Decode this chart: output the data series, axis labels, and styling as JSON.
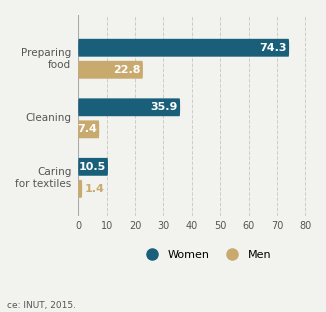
{
  "categories": [
    "Caring\nfor textiles",
    "Cleaning",
    "Preparing\nfood"
  ],
  "women_values": [
    10.5,
    35.9,
    74.3
  ],
  "men_values": [
    1.4,
    7.4,
    22.8
  ],
  "women_color": "#1a5f7a",
  "men_color": "#c8a96e",
  "bar_height": 0.3,
  "xlim": [
    0,
    82
  ],
  "xticks": [
    0,
    10,
    20,
    30,
    40,
    50,
    60,
    70,
    80
  ],
  "source_text": "ce: INUT, 2015.",
  "legend_women": "Women",
  "legend_men": "Men",
  "background_color": "#f2f2ee"
}
